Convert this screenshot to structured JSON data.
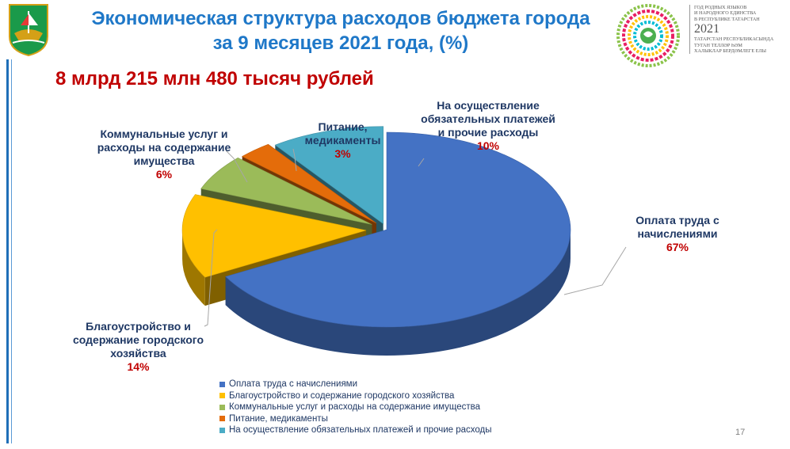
{
  "header": {
    "title_line1": "Экономическая структура расходов бюджета города",
    "title_line2": "за 9 месяцев 2021 года, (%)",
    "total": "8 млрд 215 млн 480 тысяч рублей"
  },
  "logo_right": {
    "line1": "ГОД РОДНЫХ ЯЗЫКОВ",
    "line2": "И НАРОДНОГО ЕДИНСТВА",
    "line3": "В РЕСПУБЛИКЕ ТАТАРСТАН",
    "year": "2021",
    "line4": "ТАТАРСТАН РЕСПУБЛИКАСЫНДА",
    "line5": "ТУГАН ТЕЛЛӘР ҺӘМ",
    "line6": "ХАЛЫКЛАР БЕРДӘМЛЕГЕ ЕЛЫ"
  },
  "slide_number": "17",
  "chart_data": {
    "type": "pie",
    "title": "Экономическая структура расходов бюджета города за 9 месяцев 2021 года, (%)",
    "unit": "%",
    "categories": [
      "Оплата труда с начислениями",
      "Благоустройство и содержание городского хозяйства",
      "Коммунальные услуг и расходы на содержание имущества",
      "Питание, медикаменты",
      "На осуществление обязательных платежей и прочие расходы"
    ],
    "values": [
      67,
      14,
      6,
      3,
      10
    ],
    "colors": [
      "#4472c4",
      "#ffc000",
      "#9bbb59",
      "#e46c0a",
      "#4bacc6"
    ],
    "slice_labels": [
      {
        "text": "Оплата труда с начислениями",
        "pct": "67%"
      },
      {
        "text": "Благоустройство и содержание городского хозяйства",
        "pct": "14%"
      },
      {
        "text": "Коммунальные услуг и расходы на содержание имущества",
        "pct": "6%"
      },
      {
        "text": "Питание, медикаменты",
        "pct": "3%"
      },
      {
        "text": "На осуществление обязательных платежей и прочие расходы",
        "pct": "10%"
      }
    ],
    "legend": [
      "Оплата труда с начислениями",
      "Благоустройство и содержание городского хозяйства",
      "Коммунальные услуг и расходы на содержание имущества",
      "Питание, медикаменты",
      "На осуществление обязательных платежей и прочие расходы"
    ],
    "legend_position": "bottom",
    "exploded": true,
    "style": "3d"
  }
}
